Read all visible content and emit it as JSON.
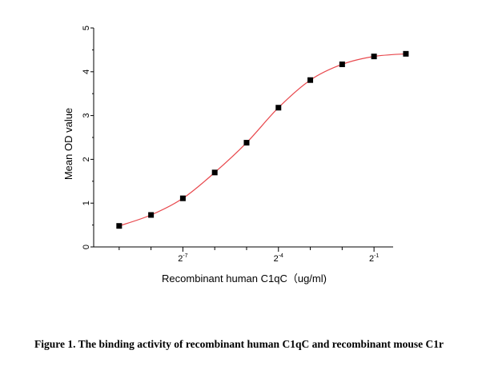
{
  "chart_data": {
    "type": "scatter",
    "xlabel": "Recombinant human C1qC（ug/ml)",
    "ylabel": "Mean OD value",
    "x_scale": "log2",
    "xlim": [
      -9.8,
      -0.4
    ],
    "ylim": [
      0,
      5
    ],
    "x_ticks": [
      {
        "value": -7,
        "base": "2",
        "exp": "-7"
      },
      {
        "value": -4,
        "base": "2",
        "exp": "-4"
      },
      {
        "value": -1,
        "base": "2",
        "exp": "-1"
      }
    ],
    "y_ticks": [
      "0",
      "1",
      "2",
      "3",
      "4",
      "5"
    ],
    "series": [
      {
        "marker": "square",
        "marker_color": "#000000",
        "curve_color": "#e8474c",
        "fit": "4PL",
        "x_log2": [
          -9,
          -8,
          -7,
          -6,
          -5,
          -4,
          -3,
          -2,
          -1,
          0
        ],
        "y": [
          0.48,
          0.73,
          1.11,
          1.7,
          2.38,
          3.18,
          3.81,
          4.17,
          4.35,
          4.41
        ]
      }
    ],
    "grid": false
  },
  "caption": "Figure 1. The binding activity of recombinant human C1qC and recombinant mouse C1r"
}
